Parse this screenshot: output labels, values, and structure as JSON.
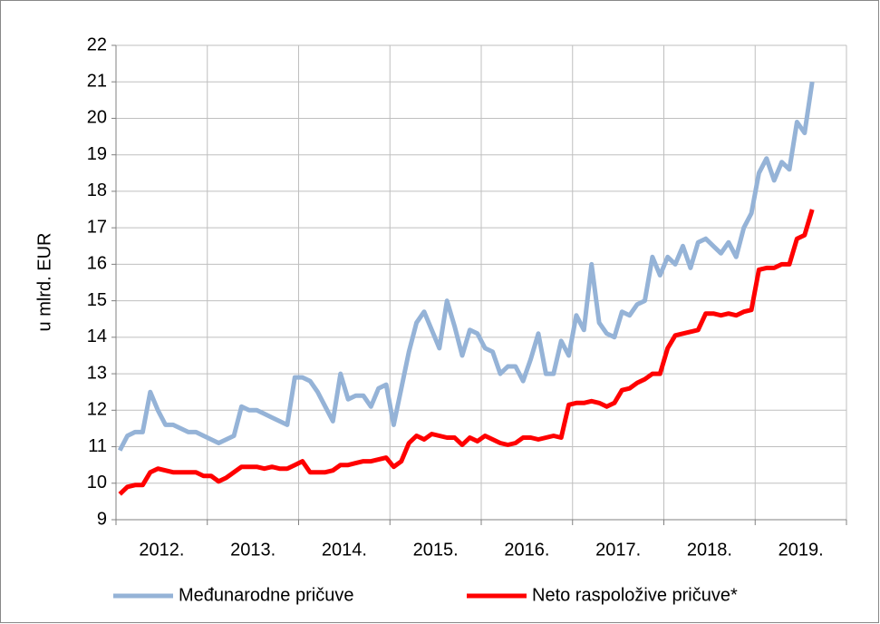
{
  "chart_data": {
    "type": "line",
    "y_label": "u mlrd. EUR",
    "categories": [
      "2012.",
      null,
      null,
      null,
      null,
      null,
      null,
      null,
      null,
      null,
      null,
      null,
      "2013.",
      null,
      null,
      null,
      null,
      null,
      null,
      null,
      null,
      null,
      null,
      null,
      "2014.",
      null,
      null,
      null,
      null,
      null,
      null,
      null,
      null,
      null,
      null,
      null,
      "2015.",
      null,
      null,
      null,
      null,
      null,
      null,
      null,
      null,
      null,
      null,
      null,
      "2016.",
      null,
      null,
      null,
      null,
      null,
      null,
      null,
      null,
      null,
      null,
      null,
      "2017.",
      null,
      null,
      null,
      null,
      null,
      null,
      null,
      null,
      null,
      null,
      null,
      "2018.",
      null,
      null,
      null,
      null,
      null,
      null,
      null,
      null,
      null,
      null,
      null,
      "2019.",
      null,
      null,
      null,
      null,
      null,
      null,
      null,
      null,
      null,
      null,
      null
    ],
    "series": [
      {
        "name": "Međunarodne pričuve",
        "color": "#95b3d7",
        "values": [
          10.9,
          11.3,
          11.4,
          11.4,
          12.5,
          12.0,
          11.6,
          11.6,
          11.5,
          11.4,
          11.4,
          11.3,
          11.2,
          11.1,
          11.2,
          11.3,
          12.1,
          12.0,
          12.0,
          11.9,
          11.8,
          11.7,
          11.6,
          12.9,
          12.9,
          12.8,
          12.5,
          12.1,
          11.7,
          13.0,
          12.3,
          12.4,
          12.4,
          12.1,
          12.6,
          12.7,
          11.6,
          12.6,
          13.6,
          14.4,
          14.7,
          14.2,
          13.7,
          15.0,
          14.3,
          13.5,
          14.2,
          14.1,
          13.7,
          13.6,
          13.0,
          13.2,
          13.2,
          12.8,
          13.4,
          14.1,
          13.0,
          13.0,
          13.9,
          13.5,
          14.6,
          14.2,
          16.0,
          14.4,
          14.1,
          14.0,
          14.7,
          14.6,
          14.9,
          15.0,
          16.2,
          15.7,
          16.2,
          16.0,
          16.5,
          15.9,
          16.6,
          16.7,
          16.5,
          16.3,
          16.6,
          16.2,
          17.0,
          17.4,
          18.5,
          18.9,
          18.3,
          18.8,
          18.6,
          19.9,
          19.6,
          21.0,
          null,
          null,
          null,
          null
        ]
      },
      {
        "name": "Neto raspoložive pričuve*",
        "color": "#ff0000",
        "values": [
          9.7,
          9.9,
          9.95,
          9.95,
          10.3,
          10.4,
          10.35,
          10.3,
          10.3,
          10.3,
          10.3,
          10.2,
          10.2,
          10.05,
          10.15,
          10.3,
          10.45,
          10.45,
          10.45,
          10.4,
          10.45,
          10.4,
          10.4,
          10.5,
          10.6,
          10.3,
          10.3,
          10.3,
          10.35,
          10.5,
          10.5,
          10.55,
          10.6,
          10.6,
          10.65,
          10.7,
          10.45,
          10.6,
          11.1,
          11.3,
          11.2,
          11.35,
          11.3,
          11.25,
          11.25,
          11.05,
          11.25,
          11.15,
          11.3,
          11.2,
          11.1,
          11.05,
          11.1,
          11.25,
          11.25,
          11.2,
          11.25,
          11.3,
          11.25,
          12.15,
          12.2,
          12.2,
          12.25,
          12.2,
          12.1,
          12.2,
          12.55,
          12.6,
          12.75,
          12.85,
          13.0,
          13.0,
          13.7,
          14.05,
          14.1,
          14.15,
          14.2,
          14.65,
          14.65,
          14.6,
          14.65,
          14.6,
          14.7,
          14.75,
          15.85,
          15.9,
          15.9,
          16.0,
          16.0,
          16.7,
          16.8,
          17.5,
          null,
          null,
          null,
          null
        ]
      }
    ],
    "ylim": [
      9,
      22
    ],
    "yticks": [
      9,
      10,
      11,
      12,
      13,
      14,
      15,
      16,
      17,
      18,
      19,
      20,
      21,
      22
    ],
    "grid": true,
    "legend": "bottom"
  }
}
